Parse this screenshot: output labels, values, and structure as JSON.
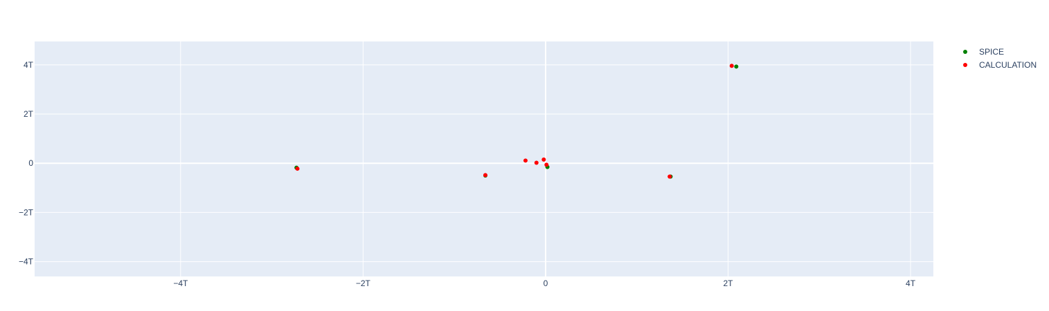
{
  "chart_data": {
    "type": "scatter",
    "title": "",
    "xlabel": "",
    "ylabel": "",
    "xlim": [
      -5.6,
      4.25
    ],
    "ylim": [
      -4.6,
      4.95
    ],
    "unit_suffix": "T",
    "x_ticks": [
      {
        "value": -4,
        "label": "−4T"
      },
      {
        "value": -2,
        "label": "−2T"
      },
      {
        "value": 0,
        "label": "0"
      },
      {
        "value": 2,
        "label": "2T"
      },
      {
        "value": 4,
        "label": "4T"
      }
    ],
    "y_ticks": [
      {
        "value": 4,
        "label": "4T"
      },
      {
        "value": 2,
        "label": "2T"
      },
      {
        "value": 0,
        "label": "0"
      },
      {
        "value": -2,
        "label": "−2T"
      },
      {
        "value": -4,
        "label": "−4T"
      }
    ],
    "grid": true,
    "legend_position": "top-right",
    "series": [
      {
        "name": "SPICE",
        "color": "#008000",
        "points": [
          {
            "x": 2.09,
            "y": 3.93
          },
          {
            "x": -2.73,
            "y": -0.18
          },
          {
            "x": -0.66,
            "y": -0.5
          },
          {
            "x": 0.02,
            "y": -0.15
          },
          {
            "x": 1.37,
            "y": -0.54
          }
        ]
      },
      {
        "name": "CALCULATION",
        "color": "#ff0000",
        "points": [
          {
            "x": 2.04,
            "y": 3.96
          },
          {
            "x": -2.72,
            "y": -0.22
          },
          {
            "x": -0.66,
            "y": -0.48
          },
          {
            "x": -0.22,
            "y": 0.11
          },
          {
            "x": -0.1,
            "y": 0.02
          },
          {
            "x": -0.02,
            "y": 0.15
          },
          {
            "x": 0.01,
            "y": -0.06
          },
          {
            "x": 1.36,
            "y": -0.54
          }
        ]
      }
    ]
  }
}
